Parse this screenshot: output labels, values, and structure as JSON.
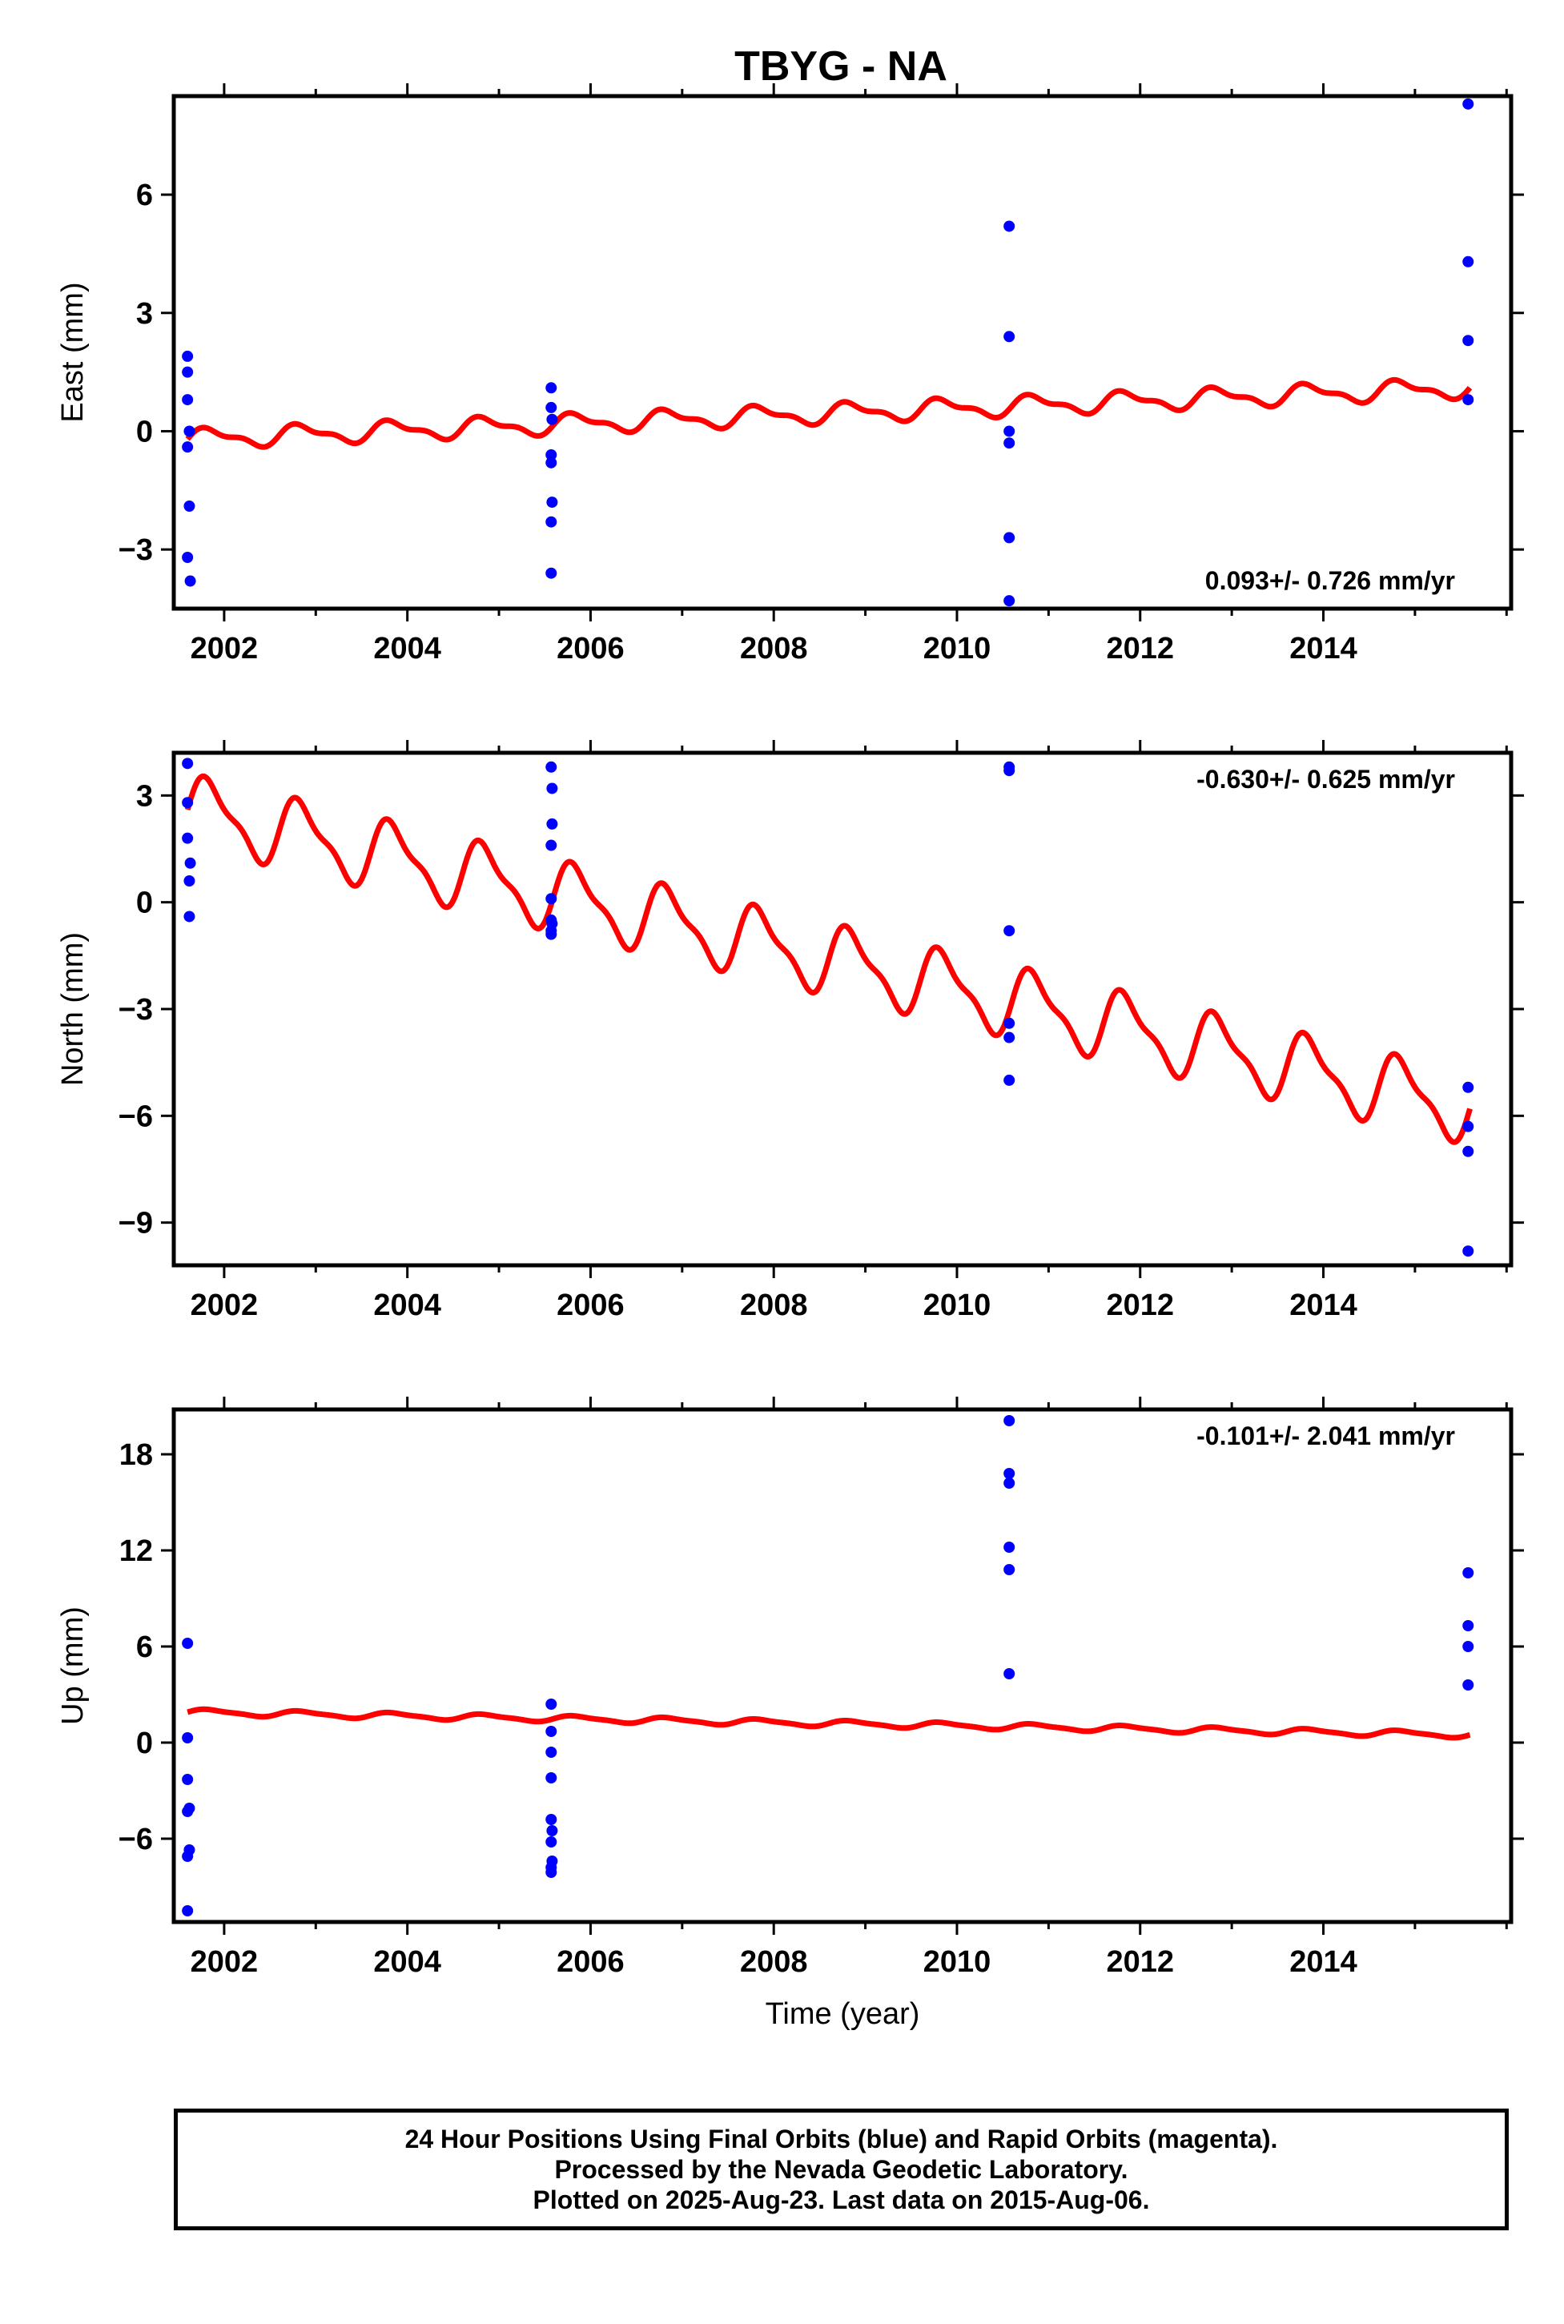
{
  "title": "TBYG - NA",
  "chart_data": [
    {
      "type": "scatter",
      "name": "east",
      "ylabel": "East (mm)",
      "xlabel": "",
      "xlim": [
        2001.45,
        2016.05
      ],
      "ylim": [
        -4.5,
        8.5
      ],
      "x_ticks": [
        2002,
        2004,
        2006,
        2008,
        2010,
        2012,
        2014
      ],
      "y_ticks": [
        -3,
        0,
        3,
        6
      ],
      "y_tick_labels": [
        "−3",
        "0",
        "3",
        "6"
      ],
      "rate_text": "0.093+/- 0.726 mm/yr",
      "rate_position": "bottom-right",
      "points": [
        [
          2001.6,
          1.9
        ],
        [
          2001.6,
          1.5
        ],
        [
          2001.6,
          0.8
        ],
        [
          2001.62,
          0.0
        ],
        [
          2001.6,
          -0.4
        ],
        [
          2001.62,
          -1.9
        ],
        [
          2001.6,
          -3.2
        ],
        [
          2001.63,
          -3.8
        ],
        [
          2005.57,
          1.1
        ],
        [
          2005.57,
          0.6
        ],
        [
          2005.58,
          0.3
        ],
        [
          2005.57,
          -0.6
        ],
        [
          2005.57,
          -0.8
        ],
        [
          2005.58,
          -1.8
        ],
        [
          2005.57,
          -2.3
        ],
        [
          2005.57,
          -3.6
        ],
        [
          2010.57,
          5.2
        ],
        [
          2010.57,
          2.4
        ],
        [
          2010.57,
          0.0
        ],
        [
          2010.57,
          -0.3
        ],
        [
          2010.57,
          -2.7
        ],
        [
          2010.57,
          -4.3
        ],
        [
          2015.58,
          8.3
        ],
        [
          2015.58,
          4.3
        ],
        [
          2015.58,
          2.3
        ],
        [
          2015.58,
          0.8
        ]
      ],
      "model": {
        "intercept": -0.2,
        "rate": 0.093,
        "annual_amp": 0.22,
        "semiannual_amp": 0.1,
        "start": 2001.6,
        "end": 2015.6
      }
    },
    {
      "type": "scatter",
      "name": "north",
      "ylabel": "North (mm)",
      "xlabel": "",
      "xlim": [
        2001.45,
        2016.05
      ],
      "ylim": [
        -10.2,
        4.2
      ],
      "x_ticks": [
        2002,
        2004,
        2006,
        2008,
        2010,
        2012,
        2014
      ],
      "y_ticks": [
        -9,
        -6,
        -3,
        0,
        3
      ],
      "y_tick_labels": [
        "−9",
        "−6",
        "−3",
        "0",
        "3"
      ],
      "rate_text": "-0.630+/- 0.625 mm/yr",
      "rate_position": "top-right",
      "points": [
        [
          2001.6,
          3.9
        ],
        [
          2001.6,
          2.8
        ],
        [
          2001.6,
          1.8
        ],
        [
          2001.63,
          1.1
        ],
        [
          2001.62,
          0.6
        ],
        [
          2001.62,
          -0.4
        ],
        [
          2005.57,
          3.8
        ],
        [
          2005.58,
          3.2
        ],
        [
          2005.58,
          2.2
        ],
        [
          2005.57,
          1.6
        ],
        [
          2005.57,
          0.1
        ],
        [
          2005.57,
          -0.5
        ],
        [
          2005.58,
          -0.6
        ],
        [
          2005.57,
          -0.8
        ],
        [
          2005.57,
          -0.9
        ],
        [
          2010.57,
          3.8
        ],
        [
          2010.57,
          3.7
        ],
        [
          2010.57,
          -0.8
        ],
        [
          2010.57,
          -3.4
        ],
        [
          2010.57,
          -3.8
        ],
        [
          2010.57,
          -5.0
        ],
        [
          2015.58,
          -5.2
        ],
        [
          2015.58,
          -6.3
        ],
        [
          2015.58,
          -7.0
        ],
        [
          2015.58,
          -9.8
        ]
      ],
      "model": {
        "intercept": 2.6,
        "rate": -0.6,
        "annual_amp": 0.9,
        "semiannual_amp": 0.3,
        "start": 2001.6,
        "end": 2015.6
      }
    },
    {
      "type": "scatter",
      "name": "up",
      "ylabel": "Up (mm)",
      "xlabel": "Time (year)",
      "xlim": [
        2001.45,
        2016.05
      ],
      "ylim": [
        -11.2,
        20.8
      ],
      "x_ticks": [
        2002,
        2004,
        2006,
        2008,
        2010,
        2012,
        2014
      ],
      "y_ticks": [
        -6,
        0,
        6,
        12,
        18
      ],
      "y_tick_labels": [
        "−6",
        "0",
        "6",
        "12",
        "18"
      ],
      "rate_text": "-0.101+/- 2.041 mm/yr",
      "rate_position": "top-right",
      "points": [
        [
          2001.6,
          6.2
        ],
        [
          2001.6,
          0.3
        ],
        [
          2001.6,
          -2.3
        ],
        [
          2001.62,
          -4.1
        ],
        [
          2001.6,
          -4.3
        ],
        [
          2001.62,
          -6.7
        ],
        [
          2001.6,
          -7.1
        ],
        [
          2001.6,
          -10.5
        ],
        [
          2005.57,
          2.4
        ],
        [
          2005.57,
          0.7
        ],
        [
          2005.57,
          -0.6
        ],
        [
          2005.57,
          -2.2
        ],
        [
          2005.57,
          -4.8
        ],
        [
          2005.58,
          -5.5
        ],
        [
          2005.57,
          -6.2
        ],
        [
          2005.58,
          -7.4
        ],
        [
          2005.57,
          -7.8
        ],
        [
          2005.57,
          -8.1
        ],
        [
          2010.57,
          20.1
        ],
        [
          2010.57,
          16.8
        ],
        [
          2010.57,
          16.2
        ],
        [
          2010.57,
          12.2
        ],
        [
          2010.57,
          10.8
        ],
        [
          2010.57,
          4.3
        ],
        [
          2015.58,
          10.6
        ],
        [
          2015.58,
          7.3
        ],
        [
          2015.58,
          6.0
        ],
        [
          2015.58,
          3.6
        ]
      ],
      "model": {
        "intercept": 1.9,
        "rate": -0.101,
        "annual_amp": 0.18,
        "semiannual_amp": 0.05,
        "start": 2001.6,
        "end": 2015.6
      }
    }
  ],
  "colors": {
    "points": "#0000ff",
    "model": "#ff0000",
    "frame": "#000000"
  },
  "footer": {
    "line1": "24 Hour Positions Using Final Orbits (blue) and Rapid Orbits (magenta).",
    "line2": "Processed by the Nevada Geodetic Laboratory.",
    "line3": "Plotted on 2025-Aug-23. Last data on 2015-Aug-06."
  }
}
